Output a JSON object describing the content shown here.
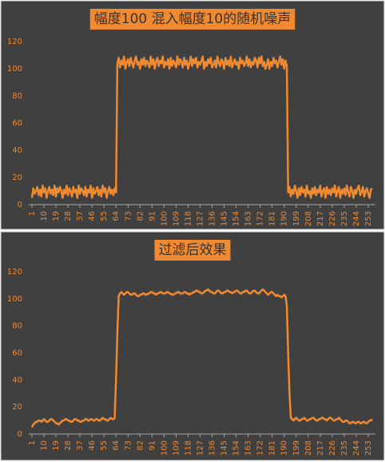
{
  "chart_data": [
    {
      "type": "line",
      "title": "幅度100 混入幅度10的随机噪声",
      "color": "#f08a30",
      "xlim": [
        1,
        256
      ],
      "ylim": [
        0,
        120
      ],
      "yticks": [
        0,
        20,
        40,
        60,
        80,
        100,
        120
      ],
      "xticks": [
        1,
        10,
        19,
        28,
        37,
        46,
        55,
        64,
        73,
        82,
        91,
        100,
        109,
        118,
        127,
        136,
        145,
        154,
        163,
        172,
        181,
        190,
        199,
        208,
        217,
        226,
        235,
        244,
        253
      ],
      "x": [
        1,
        2,
        3,
        4,
        5,
        6,
        7,
        8,
        9,
        10,
        11,
        12,
        13,
        14,
        15,
        16,
        17,
        18,
        19,
        20,
        21,
        22,
        23,
        24,
        25,
        26,
        27,
        28,
        29,
        30,
        31,
        32,
        33,
        34,
        35,
        36,
        37,
        38,
        39,
        40,
        41,
        42,
        43,
        44,
        45,
        46,
        47,
        48,
        49,
        50,
        51,
        52,
        53,
        54,
        55,
        56,
        57,
        58,
        59,
        60,
        61,
        62,
        63,
        64,
        65,
        66,
        67,
        68,
        69,
        70,
        71,
        72,
        73,
        74,
        75,
        76,
        77,
        78,
        79,
        80,
        81,
        82,
        83,
        84,
        85,
        86,
        87,
        88,
        89,
        90,
        91,
        92,
        93,
        94,
        95,
        96,
        97,
        98,
        99,
        100,
        101,
        102,
        103,
        104,
        105,
        106,
        107,
        108,
        109,
        110,
        111,
        112,
        113,
        114,
        115,
        116,
        117,
        118,
        119,
        120,
        121,
        122,
        123,
        124,
        125,
        126,
        127,
        128,
        129,
        130,
        131,
        132,
        133,
        134,
        135,
        136,
        137,
        138,
        139,
        140,
        141,
        142,
        143,
        144,
        145,
        146,
        147,
        148,
        149,
        150,
        151,
        152,
        153,
        154,
        155,
        156,
        157,
        158,
        159,
        160,
        161,
        162,
        163,
        164,
        165,
        166,
        167,
        168,
        169,
        170,
        171,
        172,
        173,
        174,
        175,
        176,
        177,
        178,
        179,
        180,
        181,
        182,
        183,
        184,
        185,
        186,
        187,
        188,
        189,
        190,
        191,
        192,
        193,
        194,
        195,
        196,
        197,
        198,
        199,
        200,
        201,
        202,
        203,
        204,
        205,
        206,
        207,
        208,
        209,
        210,
        211,
        212,
        213,
        214,
        215,
        216,
        217,
        218,
        219,
        220,
        221,
        222,
        223,
        224,
        225,
        226,
        227,
        228,
        229,
        230,
        231,
        232,
        233,
        234,
        235,
        236,
        237,
        238,
        239,
        240,
        241,
        242,
        243,
        244,
        245,
        246,
        247,
        248,
        249,
        250,
        251,
        252,
        253,
        254,
        255,
        256
      ],
      "values": [
        5,
        12,
        8,
        10,
        13,
        7,
        11,
        6,
        14,
        9,
        12,
        5,
        10,
        13,
        8,
        11,
        7,
        14,
        6,
        12,
        9,
        13,
        10,
        5,
        11,
        8,
        14,
        7,
        12,
        10,
        6,
        13,
        9,
        11,
        5,
        14,
        8,
        12,
        10,
        7,
        13,
        6,
        11,
        9,
        14,
        5,
        12,
        8,
        10,
        13,
        7,
        11,
        6,
        14,
        9,
        12,
        5,
        10,
        13,
        8,
        11,
        7,
        12,
        9,
        104,
        108,
        101,
        106,
        103,
        109,
        100,
        105,
        107,
        102,
        108,
        104,
        101,
        106,
        109,
        103,
        105,
        100,
        107,
        103,
        108,
        102,
        106,
        104,
        101,
        109,
        103,
        107,
        100,
        105,
        108,
        102,
        106,
        104,
        109,
        101,
        105,
        103,
        107,
        100,
        108,
        102,
        106,
        104,
        101,
        109,
        103,
        107,
        105,
        101,
        108,
        103,
        106,
        100,
        104,
        109,
        102,
        107,
        104,
        108,
        101,
        105,
        103,
        106,
        109,
        100,
        105,
        102,
        107,
        104,
        108,
        101,
        103,
        106,
        101,
        109,
        104,
        102,
        107,
        105,
        100,
        108,
        103,
        106,
        102,
        109,
        101,
        104,
        107,
        103,
        105,
        100,
        108,
        104,
        106,
        102,
        104,
        109,
        102,
        107,
        101,
        105,
        103,
        108,
        106,
        101,
        108,
        104,
        109,
        102,
        105,
        100,
        103,
        107,
        100,
        105,
        102,
        108,
        104,
        106,
        101,
        105,
        109,
        103,
        107,
        100,
        106,
        102,
        9,
        13,
        6,
        11,
        8,
        14,
        10,
        5,
        12,
        7,
        13,
        9,
        11,
        6,
        14,
        8,
        10,
        5,
        12,
        8,
        13,
        7,
        11,
        9,
        14,
        6,
        10,
        12,
        5,
        13,
        8,
        11,
        7,
        12,
        9,
        14,
        6,
        10,
        13,
        5,
        11,
        8,
        12,
        7,
        14,
        9,
        6,
        13,
        10,
        5,
        11,
        8,
        12,
        14,
        7,
        9,
        13,
        6,
        10,
        12,
        8,
        5,
        11,
        12
      ]
    },
    {
      "type": "line",
      "title": "过滤后效果",
      "color": "#f08a30",
      "xlim": [
        1,
        256
      ],
      "ylim": [
        0,
        120
      ],
      "yticks": [
        0,
        20,
        40,
        60,
        80,
        100,
        120
      ],
      "xticks": [
        1,
        10,
        19,
        28,
        37,
        46,
        55,
        64,
        73,
        82,
        91,
        100,
        109,
        118,
        127,
        136,
        145,
        154,
        163,
        172,
        181,
        190,
        199,
        208,
        217,
        226,
        235,
        244,
        253
      ],
      "x": [
        1,
        2,
        3,
        4,
        5,
        6,
        7,
        8,
        9,
        10,
        11,
        12,
        13,
        14,
        15,
        16,
        17,
        18,
        19,
        20,
        21,
        22,
        23,
        24,
        25,
        26,
        27,
        28,
        29,
        30,
        31,
        32,
        33,
        34,
        35,
        36,
        37,
        38,
        39,
        40,
        41,
        42,
        43,
        44,
        45,
        46,
        47,
        48,
        49,
        50,
        51,
        52,
        53,
        54,
        55,
        56,
        57,
        58,
        59,
        60,
        61,
        62,
        63,
        64,
        65,
        66,
        67,
        68,
        69,
        70,
        71,
        72,
        73,
        74,
        75,
        76,
        77,
        78,
        79,
        80,
        81,
        82,
        83,
        84,
        85,
        86,
        87,
        88,
        89,
        90,
        91,
        92,
        93,
        94,
        95,
        96,
        97,
        98,
        99,
        100,
        101,
        102,
        103,
        104,
        105,
        106,
        107,
        108,
        109,
        110,
        111,
        112,
        113,
        114,
        115,
        116,
        117,
        118,
        119,
        120,
        121,
        122,
        123,
        124,
        125,
        126,
        127,
        128,
        129,
        130,
        131,
        132,
        133,
        134,
        135,
        136,
        137,
        138,
        139,
        140,
        141,
        142,
        143,
        144,
        145,
        146,
        147,
        148,
        149,
        150,
        151,
        152,
        153,
        154,
        155,
        156,
        157,
        158,
        159,
        160,
        161,
        162,
        163,
        164,
        165,
        166,
        167,
        168,
        169,
        170,
        171,
        172,
        173,
        174,
        175,
        176,
        177,
        178,
        179,
        180,
        181,
        182,
        183,
        184,
        185,
        186,
        187,
        188,
        189,
        190,
        191,
        192,
        193,
        194,
        195,
        196,
        197,
        198,
        199,
        200,
        201,
        202,
        203,
        204,
        205,
        206,
        207,
        208,
        209,
        210,
        211,
        212,
        213,
        214,
        215,
        216,
        217,
        218,
        219,
        220,
        221,
        222,
        223,
        224,
        225,
        226,
        227,
        228,
        229,
        230,
        231,
        232,
        233,
        234,
        235,
        236,
        237,
        238,
        239,
        240,
        241,
        242,
        243,
        244,
        245,
        246,
        247,
        248,
        249,
        250,
        251,
        252,
        253,
        254,
        255,
        256
      ],
      "values": [
        5,
        7,
        8,
        9,
        9,
        10,
        10,
        9,
        10,
        11,
        10,
        9,
        9,
        10,
        11,
        11,
        10,
        9,
        8,
        8,
        7,
        8,
        9,
        10,
        10,
        11,
        11,
        10,
        10,
        9,
        9,
        10,
        11,
        11,
        10,
        10,
        9,
        9,
        10,
        10,
        11,
        11,
        10,
        10,
        11,
        11,
        10,
        10,
        11,
        11,
        10,
        10,
        11,
        12,
        11,
        11,
        10,
        10,
        11,
        12,
        11,
        11,
        12,
        40,
        75,
        102,
        104,
        105,
        104,
        103,
        104,
        105,
        105,
        104,
        103,
        103,
        104,
        104,
        103,
        102,
        102,
        103,
        103,
        104,
        104,
        103,
        103,
        104,
        104,
        105,
        105,
        104,
        104,
        103,
        104,
        104,
        105,
        105,
        104,
        104,
        104,
        105,
        105,
        104,
        104,
        103,
        103,
        104,
        104,
        105,
        105,
        104,
        104,
        104,
        105,
        105,
        104,
        104,
        103,
        104,
        104,
        105,
        105,
        106,
        106,
        105,
        105,
        104,
        104,
        105,
        106,
        106,
        107,
        106,
        105,
        105,
        104,
        104,
        105,
        106,
        106,
        105,
        104,
        104,
        105,
        105,
        106,
        106,
        105,
        105,
        104,
        105,
        105,
        106,
        106,
        105,
        104,
        104,
        105,
        105,
        106,
        106,
        105,
        104,
        104,
        105,
        106,
        106,
        105,
        104,
        104,
        105,
        106,
        107,
        106,
        105,
        104,
        103,
        104,
        105,
        105,
        104,
        103,
        102,
        103,
        102,
        102,
        101,
        102,
        103,
        102,
        95,
        60,
        30,
        12,
        11,
        10,
        11,
        12,
        11,
        10,
        10,
        11,
        11,
        12,
        11,
        10,
        10,
        11,
        11,
        12,
        12,
        11,
        10,
        10,
        11,
        11,
        12,
        12,
        11,
        11,
        10,
        11,
        12,
        12,
        11,
        10,
        10,
        11,
        11,
        12,
        11,
        10,
        9,
        9,
        10,
        10,
        9,
        8,
        8,
        9,
        9,
        8,
        8,
        9,
        9,
        8,
        8,
        9,
        9,
        8,
        8,
        9,
        10,
        10,
        11
      ]
    }
  ]
}
